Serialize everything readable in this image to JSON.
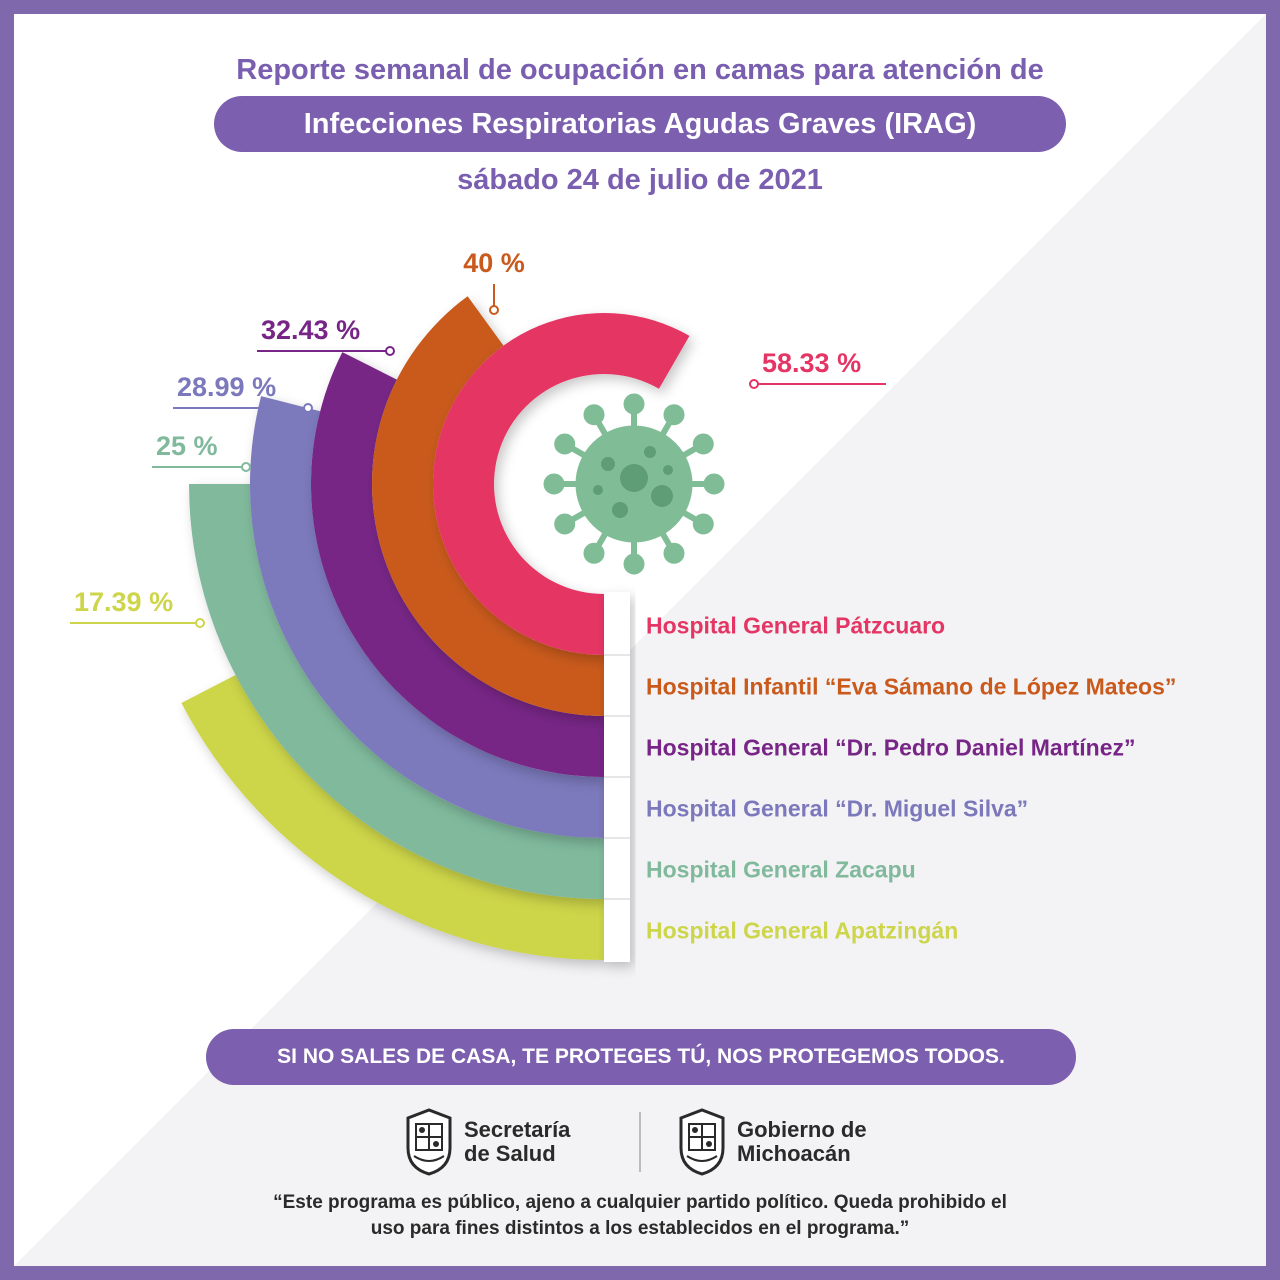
{
  "header": {
    "line1": "Reporte semanal de ocupación en camas para atención de",
    "line2": "Infecciones Respiratorias Agudas Graves (IRAG)",
    "line3": "sábado 24 de julio de 2021"
  },
  "chart_data": {
    "type": "radial-bar",
    "title": "Reporte semanal de ocupación en camas para atención de Infecciones Respiratorias Agudas Graves (IRAG)",
    "unit": "%",
    "series": [
      {
        "name": "Hospital General Pátzcuaro",
        "value": 58.33,
        "label": "58.33 %",
        "color": "#e43564"
      },
      {
        "name": "Hospital Infantil “Eva Sámano de López Mateos”",
        "value": 40,
        "label": "40 %",
        "color": "#c95a1c"
      },
      {
        "name": "Hospital General “Dr. Pedro Daniel Martínez”",
        "value": 32.43,
        "label": "32.43 %",
        "color": "#772586"
      },
      {
        "name": "Hospital General “Dr. Miguel Silva”",
        "value": 28.99,
        "label": "28.99 %",
        "color": "#7b79bc"
      },
      {
        "name": "Hospital General Zacapu",
        "value": 25,
        "label": "25 %",
        "color": "#80b99c"
      },
      {
        "name": "Hospital General Apatzingán",
        "value": 17.39,
        "label": "17.39 %",
        "color": "#cdd54a"
      }
    ]
  },
  "footer": {
    "slogan": "SI NO SALES DE CASA, TE PROTEGES TÚ, NOS PROTEGEMOS TODOS.",
    "logo1_line1": "Secretaría",
    "logo1_line2": "de Salud",
    "logo2_line1": "Gobierno de",
    "logo2_line2": "Michoacán",
    "disclaimer_line1": "“Este programa es público, ajeno a cualquier partido político. Queda prohibido el",
    "disclaimer_line2": "uso para fines distintos a los establecidos en el programa.”"
  }
}
